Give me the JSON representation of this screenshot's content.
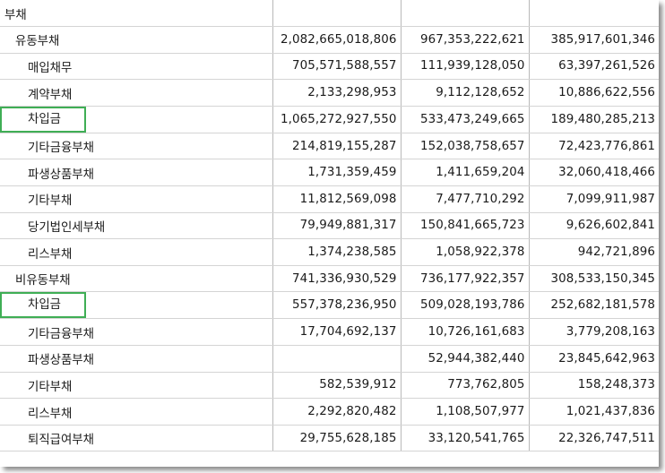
{
  "rows": [
    {
      "label": "부채",
      "level": 0,
      "values": [
        "",
        "",
        ""
      ]
    },
    {
      "label": "유동부채",
      "level": 1,
      "values": [
        "2,082,665,018,806",
        "967,353,222,621",
        "385,917,601,346"
      ]
    },
    {
      "label": "매입채무",
      "level": 2,
      "values": [
        "705,571,588,557",
        "111,939,128,050",
        "63,397,261,526"
      ]
    },
    {
      "label": "계약부채",
      "level": 2,
      "values": [
        "2,133,298,953",
        "9,112,128,652",
        "10,886,622,556"
      ]
    },
    {
      "label": "차입금",
      "level": 2,
      "highlight": true,
      "values": [
        "1,065,272,927,550",
        "533,473,249,665",
        "189,480,285,213"
      ]
    },
    {
      "label": "기타금융부채",
      "level": 2,
      "values": [
        "214,819,155,287",
        "152,038,758,657",
        "72,423,776,861"
      ]
    },
    {
      "label": "파생상품부채",
      "level": 2,
      "values": [
        "1,731,359,459",
        "1,411,659,204",
        "32,060,418,466"
      ]
    },
    {
      "label": "기타부채",
      "level": 2,
      "values": [
        "11,812,569,098",
        "7,477,710,292",
        "7,099,911,987"
      ]
    },
    {
      "label": "당기법인세부채",
      "level": 2,
      "values": [
        "79,949,881,317",
        "150,841,665,723",
        "9,626,602,841"
      ]
    },
    {
      "label": "리스부채",
      "level": 2,
      "values": [
        "1,374,238,585",
        "1,058,922,378",
        "942,721,896"
      ]
    },
    {
      "label": "비유동부채",
      "level": 1,
      "values": [
        "741,336,930,529",
        "736,177,922,357",
        "308,533,150,345"
      ]
    },
    {
      "label": "차입금",
      "level": 2,
      "highlight": true,
      "values": [
        "557,378,236,950",
        "509,028,193,786",
        "252,682,181,578"
      ]
    },
    {
      "label": "기타금융부채",
      "level": 2,
      "values": [
        "17,704,692,137",
        "10,726,161,683",
        "3,779,208,163"
      ]
    },
    {
      "label": "파생상품부채",
      "level": 2,
      "values": [
        "",
        "52,944,382,440",
        "23,845,642,963"
      ]
    },
    {
      "label": "기타부채",
      "level": 2,
      "values": [
        "582,539,912",
        "773,762,805",
        "158,248,373"
      ]
    },
    {
      "label": "리스부채",
      "level": 2,
      "values": [
        "2,292,820,482",
        "1,108,507,977",
        "1,021,437,836"
      ]
    },
    {
      "label": "퇴직급여부채",
      "level": 2,
      "values": [
        "29,755,628,185",
        "33,120,541,765",
        "22,326,747,511"
      ]
    }
  ]
}
